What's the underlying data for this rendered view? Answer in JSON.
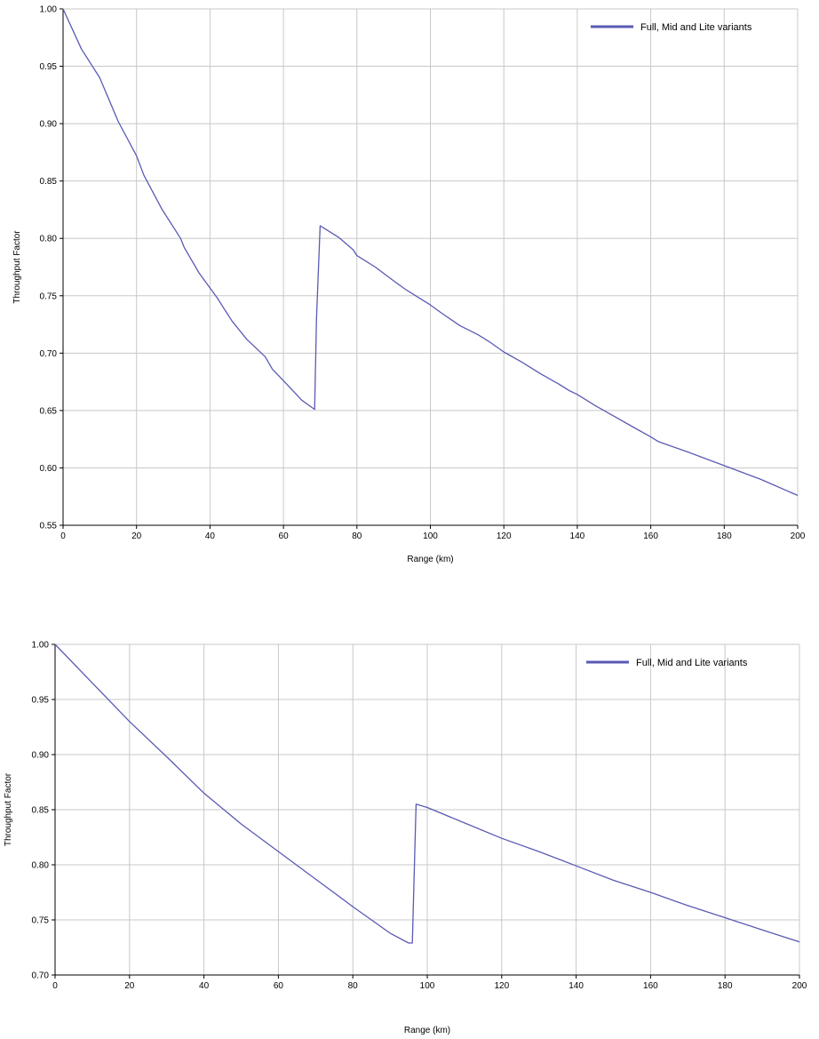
{
  "chart_data": [
    {
      "type": "line",
      "title": "",
      "xlabel": "Range (km)",
      "ylabel": "Throughput Factor",
      "xlim": [
        0,
        200
      ],
      "ylim": [
        0.55,
        1.0
      ],
      "x_ticks": [
        "0",
        "20",
        "40",
        "60",
        "80",
        "100",
        "120",
        "140",
        "160",
        "180",
        "200"
      ],
      "y_ticks": [
        "0.55",
        "0.60",
        "0.65",
        "0.70",
        "0.75",
        "0.80",
        "0.85",
        "0.90",
        "0.95",
        "1.00"
      ],
      "grid": true,
      "legend_position": "top-right",
      "series": [
        {
          "name": "Full, Mid and Lite variants",
          "color": "#5a5ab4",
          "x": [
            0,
            5,
            10,
            15,
            20,
            22,
            27,
            32,
            33,
            37,
            42,
            44,
            46,
            50,
            55,
            57,
            60,
            65,
            68.5,
            69,
            70,
            72,
            75,
            79,
            80,
            85,
            90,
            93,
            96,
            100,
            103,
            108,
            113,
            116,
            120,
            125,
            130,
            135,
            138,
            140,
            145,
            150,
            155,
            160,
            162,
            170,
            180,
            190,
            200
          ],
          "y": [
            1.0,
            0.965,
            0.94,
            0.902,
            0.872,
            0.855,
            0.825,
            0.8,
            0.792,
            0.77,
            0.748,
            0.738,
            0.728,
            0.712,
            0.697,
            0.686,
            0.676,
            0.659,
            0.651,
            0.73,
            0.811,
            0.807,
            0.801,
            0.79,
            0.785,
            0.775,
            0.763,
            0.756,
            0.75,
            0.742,
            0.735,
            0.724,
            0.716,
            0.71,
            0.701,
            0.692,
            0.682,
            0.673,
            0.667,
            0.664,
            0.654,
            0.645,
            0.636,
            0.627,
            0.623,
            0.614,
            0.602,
            0.59,
            0.576
          ]
        }
      ]
    },
    {
      "type": "line",
      "title": "",
      "xlabel": "Range (km)",
      "ylabel": "Throughput Factor",
      "xlim": [
        0,
        200
      ],
      "ylim": [
        0.7,
        1.0
      ],
      "x_ticks": [
        "0",
        "20",
        "40",
        "60",
        "80",
        "100",
        "120",
        "140",
        "160",
        "180",
        "200"
      ],
      "y_ticks": [
        "0.70",
        "0.75",
        "0.80",
        "0.85",
        "0.90",
        "0.95",
        "1.00"
      ],
      "grid": true,
      "legend_position": "top-right",
      "series": [
        {
          "name": "Full, Mid and Lite variants",
          "color": "#5a5ab4",
          "x": [
            0,
            10,
            20,
            30,
            40,
            50,
            60,
            70,
            80,
            90,
            95,
            96,
            97,
            100,
            110,
            120,
            130,
            140,
            150,
            160,
            170,
            180,
            190,
            200
          ],
          "y": [
            1.0,
            0.965,
            0.93,
            0.898,
            0.865,
            0.837,
            0.812,
            0.787,
            0.762,
            0.738,
            0.729,
            0.729,
            0.855,
            0.852,
            0.838,
            0.824,
            0.812,
            0.799,
            0.786,
            0.775,
            0.763,
            0.752,
            0.741,
            0.73
          ]
        }
      ]
    }
  ]
}
